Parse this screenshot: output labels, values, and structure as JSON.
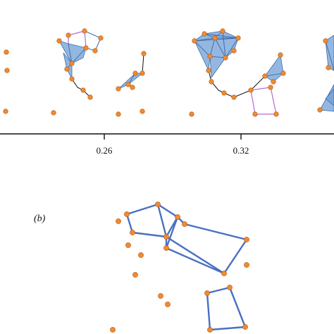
{
  "colors": {
    "node_fill": "#f08a32",
    "node_stroke": "#b35a12",
    "simplex_fill": "#6f9fd6",
    "simplex_stroke": "#3d6aa6",
    "purple_edge": "#b36bd6",
    "black_edge": "#111111",
    "axis": "#111111",
    "panel_b_edge": "#4a6fc4"
  },
  "axis": {
    "ticks": [
      "0.26",
      "0.32"
    ]
  },
  "panel_b": {
    "label": "(b)"
  }
}
